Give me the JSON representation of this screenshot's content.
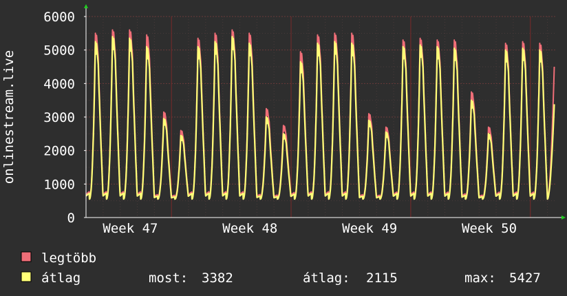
{
  "chart_data": {
    "type": "area",
    "ylabel": "onlinestream.live",
    "ylim": [
      0,
      6000
    ],
    "yticks": [
      0,
      1000,
      2000,
      3000,
      4000,
      5000,
      6000
    ],
    "x_tick_labels": [
      "Week 47",
      "Week 48",
      "Week 49",
      "Week 50"
    ],
    "grid": true,
    "series": [
      {
        "name": "legtöbb",
        "color": "#f06e78",
        "daily_peaks": [
          5500,
          5600,
          5600,
          5450,
          3150,
          2600,
          5350,
          5500,
          5600,
          5500,
          3250,
          2750,
          4950,
          5450,
          5500,
          5500,
          3100,
          2700,
          5300,
          5350,
          5300,
          5300,
          3750,
          2700,
          5200,
          5250,
          5200
        ],
        "last": 4500
      },
      {
        "name": "átlag",
        "color": "#ffff78",
        "daily_peaks": [
          5250,
          5400,
          5350,
          5100,
          2950,
          2450,
          5100,
          5250,
          5400,
          5200,
          3000,
          2500,
          4650,
          5200,
          5250,
          5200,
          2900,
          2550,
          5100,
          5150,
          5100,
          5050,
          3500,
          2500,
          5000,
          5050,
          5000
        ],
        "last": 3382
      }
    ],
    "legend": {
      "placement": "bottom-left",
      "stats": {
        "now_label": "most:",
        "now_value": "3382",
        "avg_label": "átlag:",
        "avg_value": "2115",
        "max_label": "max:",
        "max_value": "5427"
      }
    },
    "colors": {
      "background": "#2e2e2e",
      "plot_background": "#2e2e2e",
      "grid": "#553333",
      "axis": "#ffffff",
      "arrow": "#22cc22"
    }
  }
}
